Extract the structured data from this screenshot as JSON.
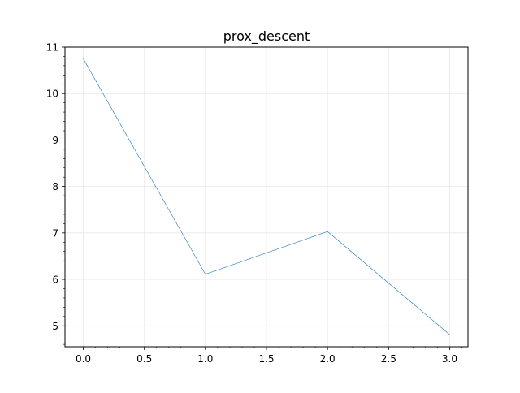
{
  "chart_data": {
    "type": "line",
    "title": "prox_descent",
    "xlabel": "",
    "ylabel": "",
    "x": [
      0,
      1,
      2,
      3
    ],
    "series": [
      {
        "values": [
          10.75,
          6.11,
          7.03,
          4.81
        ]
      }
    ],
    "xlim": [
      -0.15,
      3.15
    ],
    "ylim": [
      4.55,
      11.0
    ],
    "xticks": [
      0,
      0.5,
      1,
      1.5,
      2,
      2.5,
      3
    ],
    "xtick_labels": [
      "0.0",
      "0.5",
      "1.0",
      "1.5",
      "2.0",
      "2.5",
      "3.0"
    ],
    "yticks": [
      5,
      6,
      7,
      8,
      9,
      10,
      11
    ],
    "ytick_labels": [
      "5",
      "6",
      "7",
      "8",
      "9",
      "10",
      "11"
    ],
    "grid": true,
    "minor_ticks": true,
    "line_color": "#1f77b4"
  }
}
